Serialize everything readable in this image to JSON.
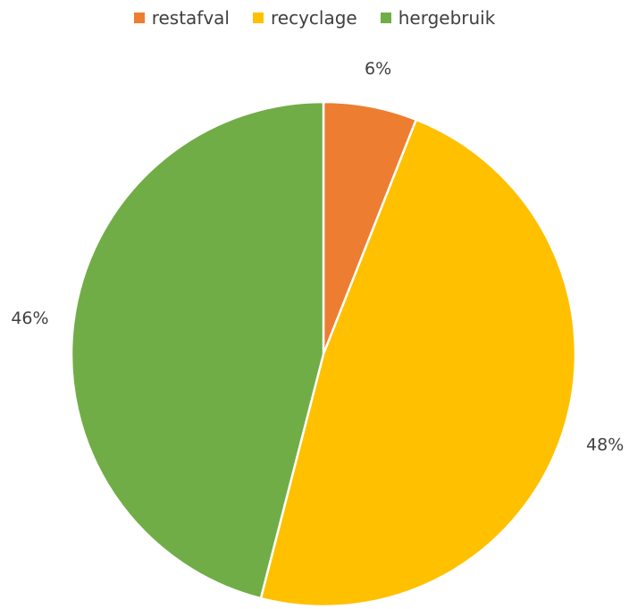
{
  "chart_data": {
    "type": "pie",
    "title": "",
    "legend_position": "top",
    "slices": [
      {
        "name": "restafval",
        "value": 6,
        "label": "6%",
        "color": "#ED7D31"
      },
      {
        "name": "recyclage",
        "value": 48,
        "label": "48%",
        "color": "#FFC000"
      },
      {
        "name": "hergebruik",
        "value": 46,
        "label": "46%",
        "color": "#70AD47"
      }
    ]
  }
}
